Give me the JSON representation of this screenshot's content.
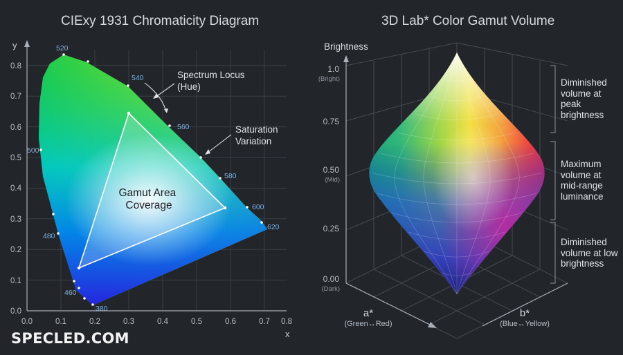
{
  "left_panel": {
    "title": "CIExy 1931 Chromaticity Diagram",
    "axis_x_label": "x",
    "axis_y_label": "y",
    "x_ticks": [
      "0.0",
      "0.1",
      "0.2",
      "0.3",
      "0.4",
      "0.5",
      "0.6",
      "0.7",
      "0.8"
    ],
    "y_ticks": [
      "0.0",
      "0.1",
      "0.2",
      "0.3",
      "0.4",
      "0.5",
      "0.6",
      "0.7",
      "0.8"
    ],
    "wavelength_labels": [
      "520",
      "540",
      "560",
      "580",
      "600",
      "620",
      "500",
      "480",
      "460",
      "380"
    ],
    "annotations": {
      "spectrum_locus": [
        "Spectrum Locus",
        "(Hue)"
      ],
      "saturation": [
        "Saturation",
        "Variation"
      ],
      "gamut_area": [
        "Gamut Area",
        "Coverage"
      ]
    }
  },
  "right_panel": {
    "title": "3D Lab* Color Gamut Volume",
    "vertical_axis_label": "Brightness",
    "brightness_ticks": [
      {
        "value": "1.0",
        "note": "(Bright)"
      },
      {
        "value": "0.75",
        "note": ""
      },
      {
        "value": "0.50",
        "note": "(Mid)"
      },
      {
        "value": "0.25",
        "note": ""
      },
      {
        "value": "0.00",
        "note": "(Dark)"
      }
    ],
    "a_axis": {
      "label": "a*",
      "sub": "(Green↔Red)"
    },
    "b_axis": {
      "label": "b*",
      "sub": "(Blue↔Yellow)"
    },
    "side_notes": [
      "Diminished volume at peak brightness",
      "Maximum volume at mid-range luminance",
      "Diminished volume at low brightness"
    ]
  },
  "watermark": "SPECLED.COM"
}
